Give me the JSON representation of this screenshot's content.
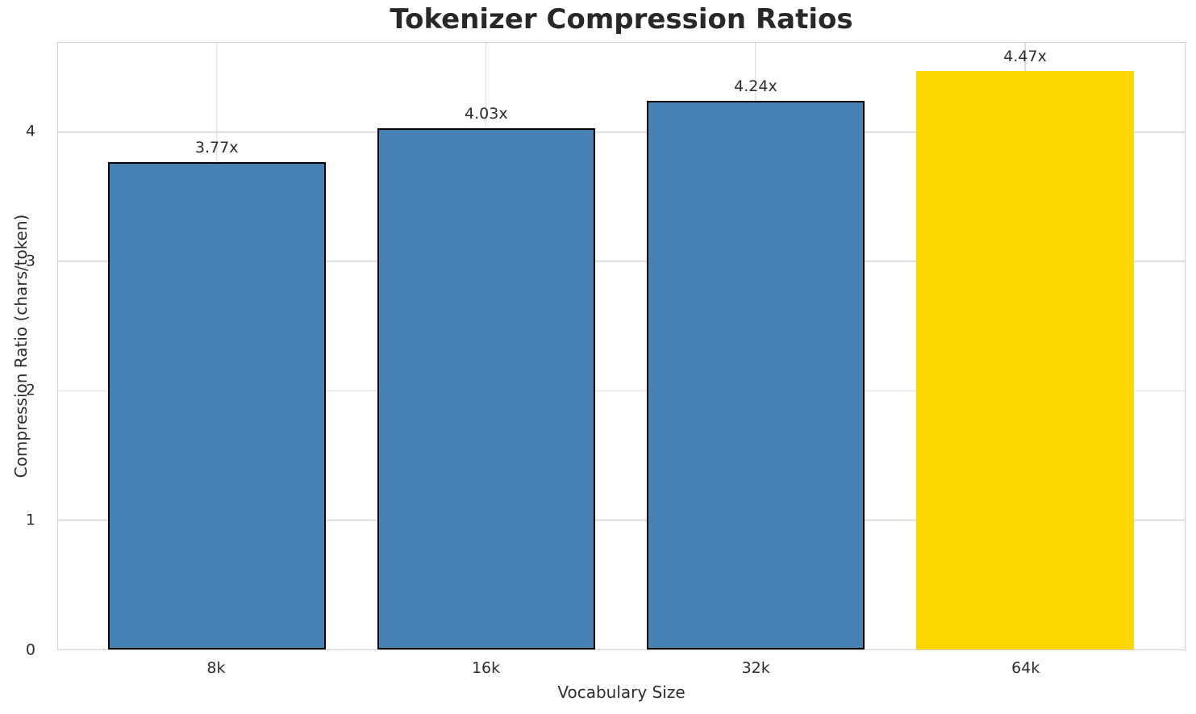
{
  "chart_data": {
    "type": "bar",
    "title": "Tokenizer Compression Ratios",
    "xlabel": "Vocabulary Size",
    "ylabel": "Compression Ratio (chars/token)",
    "categories": [
      "8k",
      "16k",
      "32k",
      "64k"
    ],
    "values": [
      3.77,
      4.03,
      4.24,
      4.47
    ],
    "value_labels": [
      "3.77x",
      "4.03x",
      "4.24x",
      "4.47x"
    ],
    "bar_colors": [
      "#4682B4",
      "#4682B4",
      "#4682B4",
      "#FFD700"
    ],
    "bar_edge_colors": [
      "#000000",
      "#000000",
      "#000000",
      "#FFD700"
    ],
    "highlight_index": 3,
    "y_ticks": [
      0,
      1,
      2,
      3,
      4
    ],
    "y_tick_labels": [
      "0",
      "1",
      "2",
      "3",
      "4"
    ],
    "ylim": [
      0,
      4.69
    ],
    "grid": true,
    "legend": null
  },
  "colors": {
    "bar_blue": "#4682B4",
    "bar_gold": "#FFD700",
    "gridline": "#DCDCDC",
    "spine": "#D0D0D0",
    "text": "#2D2D2D",
    "background": "#FFFFFF"
  }
}
